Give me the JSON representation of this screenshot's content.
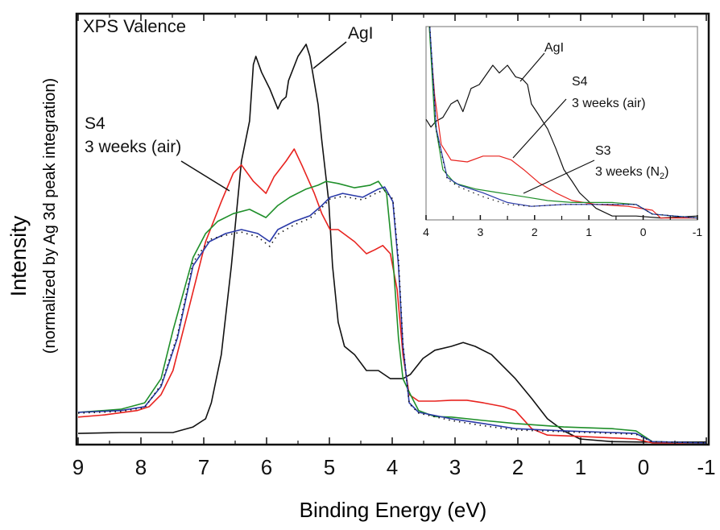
{
  "chart_data": [
    {
      "type": "line",
      "title": "XPS Valence",
      "xlabel": "Binding Energy (eV)",
      "ylabel": "Intensity",
      "ylabel_sub": "(normalized by Ag 3d peak integration)",
      "xlim": [
        9,
        -1
      ],
      "ylim": [
        0,
        100
      ],
      "x_reversed": true,
      "y_ticks_shown": false,
      "xticks": [
        "9",
        "8",
        "7",
        "6",
        "5",
        "4",
        "3",
        "2",
        "1",
        "0",
        "-1"
      ],
      "grid": false,
      "annotations": [
        {
          "label": "AgI"
        },
        {
          "label": "S4",
          "label2": "3 weeks (air)"
        }
      ],
      "series": [
        {
          "color": "#111111",
          "style": "solid",
          "x": [
            9.0,
            8.32,
            7.49,
            7.17,
            6.97,
            6.88,
            6.72,
            6.56,
            6.4,
            6.27,
            6.21,
            6.17,
            6.08,
            5.95,
            5.82,
            5.76,
            5.69,
            5.65,
            5.5,
            5.37,
            5.31,
            5.18,
            5.12,
            5.01,
            4.95,
            4.86,
            4.76,
            4.6,
            4.41,
            4.22,
            4.03,
            3.83,
            3.71,
            3.51,
            3.32,
            3.06,
            2.87,
            2.68,
            2.42,
            2.23,
            2.04,
            1.78,
            1.53,
            1.27,
            1.01,
            0.5,
            0.0,
            -1.0
          ],
          "y": [
            2.6,
            2.8,
            2.8,
            4.1,
            6.0,
            9.7,
            20.9,
            41.5,
            65.8,
            75.1,
            88.2,
            90.1,
            86.4,
            82.6,
            77.9,
            79.8,
            80.7,
            84.5,
            90.1,
            92.9,
            90.1,
            78.9,
            70.5,
            56.4,
            41.5,
            28.4,
            22.8,
            20.9,
            17.2,
            17.2,
            15.3,
            15.3,
            16.3,
            20.0,
            21.9,
            22.8,
            23.7,
            22.8,
            20.9,
            18.1,
            15.3,
            10.7,
            6.0,
            3.2,
            1.3,
            0.7,
            0.6,
            0.6
          ]
        },
        {
          "color": "#e8231f",
          "style": "solid",
          "x": [
            9.0,
            8.58,
            8.06,
            7.87,
            7.68,
            7.49,
            7.23,
            6.97,
            6.72,
            6.53,
            6.4,
            6.21,
            6.01,
            5.88,
            5.69,
            5.56,
            5.44,
            5.24,
            5.12,
            4.99,
            4.86,
            4.6,
            4.41,
            4.28,
            4.15,
            4.03,
            3.92,
            3.83,
            3.73,
            3.58,
            3.32,
            3.06,
            2.81,
            2.55,
            2.23,
            2.04,
            1.78,
            1.53,
            1.01,
            0.12,
            -0.14,
            -1.0
          ],
          "y": [
            6.4,
            6.9,
            7.9,
            8.8,
            11.6,
            17.2,
            32.1,
            47.1,
            56.4,
            63.0,
            64.9,
            61.1,
            58.3,
            62.2,
            65.8,
            68.6,
            64.9,
            58.3,
            53.6,
            49.9,
            49.9,
            47.1,
            44.3,
            45.2,
            46.2,
            44.3,
            35.9,
            20.9,
            11.6,
            10.1,
            10.1,
            10.3,
            10.3,
            9.7,
            8.8,
            7.9,
            3.7,
            2.2,
            1.9,
            1.3,
            0.4,
            0.4
          ]
        },
        {
          "color": "#1f8f2a",
          "style": "solid",
          "x": [
            9.0,
            8.32,
            7.94,
            7.68,
            7.49,
            7.17,
            6.97,
            6.78,
            6.53,
            6.27,
            6.01,
            5.82,
            5.63,
            5.37,
            5.18,
            5.05,
            4.86,
            4.6,
            4.35,
            4.22,
            4.09,
            3.99,
            3.9,
            3.83,
            3.71,
            3.58,
            3.32,
            3.06,
            2.55,
            2.04,
            1.27,
            0.5,
            0.12,
            -0.14,
            -1.0
          ],
          "y": [
            7.5,
            8.2,
            9.7,
            15.3,
            26.5,
            43.4,
            49.0,
            51.8,
            53.6,
            54.6,
            52.7,
            55.5,
            57.4,
            59.3,
            60.2,
            61.1,
            60.6,
            59.6,
            60.2,
            61.1,
            58.3,
            43.4,
            24.7,
            15.3,
            11.6,
            7.9,
            6.5,
            6.4,
            5.6,
            4.9,
            4.1,
            3.7,
            3.2,
            0.7,
            0.4
          ]
        },
        {
          "color": "#2a3aa8",
          "style": "solid",
          "x": [
            9.0,
            8.32,
            7.94,
            7.68,
            7.42,
            7.17,
            6.91,
            6.65,
            6.4,
            6.14,
            5.95,
            5.82,
            5.56,
            5.31,
            5.12,
            4.99,
            4.79,
            4.47,
            4.22,
            4.12,
            3.99,
            3.9,
            3.83,
            3.73,
            3.58,
            3.06,
            2.55,
            2.04,
            1.27,
            0.5,
            0.12,
            -0.14,
            -1.0
          ],
          "y": [
            7.5,
            7.9,
            8.8,
            13.5,
            24.7,
            41.5,
            47.1,
            49.0,
            49.9,
            49.0,
            47.1,
            49.9,
            51.8,
            53.1,
            55.5,
            57.4,
            58.3,
            57.4,
            59.3,
            59.8,
            56.4,
            41.5,
            22.8,
            9.7,
            7.5,
            6.0,
            4.9,
            3.7,
            3.2,
            2.8,
            2.6,
            0.7,
            0.4
          ]
        },
        {
          "color": "#111111",
          "style": "dotted",
          "x": [
            9.0,
            8.32,
            7.94,
            7.68,
            7.42,
            7.17,
            6.91,
            6.65,
            6.4,
            6.14,
            5.95,
            5.82,
            5.56,
            5.31,
            5.12,
            4.99,
            4.79,
            4.47,
            4.22,
            4.12,
            3.99,
            3.9,
            3.83,
            3.73,
            3.58,
            3.06,
            2.55,
            2.04,
            1.27,
            0.5,
            0.12,
            -0.14,
            -1.0
          ],
          "y": [
            7.3,
            7.7,
            8.6,
            13.9,
            25.3,
            42.3,
            47.6,
            48.6,
            49.3,
            48.2,
            46.0,
            48.8,
            51.0,
            52.5,
            55.0,
            57.0,
            57.6,
            56.8,
            58.6,
            59.0,
            57.0,
            43.0,
            23.5,
            9.5,
            7.3,
            5.6,
            4.4,
            3.4,
            3.0,
            2.6,
            2.4,
            0.7,
            0.4
          ]
        }
      ]
    },
    {
      "type": "line",
      "inset": true,
      "xlim": [
        4,
        -1
      ],
      "ylim": [
        0,
        100
      ],
      "x_reversed": true,
      "xticks": [
        "4",
        "3",
        "2",
        "1",
        "0",
        "-1"
      ],
      "annotations": [
        {
          "label": "AgI"
        },
        {
          "label": "S4",
          "label2": "3 weeks (air)"
        },
        {
          "label": "S3",
          "label2": "3 weeks (N",
          "label2_sub": "2",
          "label2_end": ")"
        }
      ],
      "series": [
        {
          "color": "#111111",
          "style": "solid",
          "x": [
            4.0,
            3.91,
            3.82,
            3.69,
            3.54,
            3.42,
            3.32,
            3.17,
            3.02,
            2.87,
            2.77,
            2.65,
            2.5,
            2.35,
            2.23,
            2.13,
            2.06,
            1.94,
            1.76,
            1.61,
            1.46,
            1.31,
            1.17,
            1.02,
            0.87,
            0.57,
            0.13,
            -0.32,
            -1.0
          ],
          "y": [
            52,
            48,
            51,
            53,
            60,
            62,
            56,
            68,
            70,
            76,
            80,
            76,
            80,
            74,
            73,
            70,
            60,
            55,
            47,
            37,
            26,
            20,
            14,
            10,
            6,
            2,
            2,
            1,
            2
          ]
        },
        {
          "color": "#e8231f",
          "style": "solid",
          "x": [
            3.94,
            3.84,
            3.72,
            3.54,
            3.24,
            2.95,
            2.65,
            2.43,
            2.2,
            1.91,
            1.61,
            1.31,
            0.87,
            0.28,
            -0.17,
            -0.32,
            -1.0
          ],
          "y": [
            100,
            64,
            39,
            31,
            30,
            33,
            33,
            31,
            26,
            19,
            14,
            10,
            8,
            7,
            5,
            1,
            1
          ]
        },
        {
          "color": "#1f8f2a",
          "style": "solid",
          "x": [
            3.94,
            3.84,
            3.69,
            3.47,
            3.09,
            2.65,
            2.2,
            1.76,
            1.31,
            0.57,
            0.13,
            -0.17,
            -1.0
          ],
          "y": [
            100,
            51,
            26,
            19,
            16,
            14,
            12,
            10,
            9,
            9,
            8,
            3,
            1
          ]
        },
        {
          "color": "#2a3aa8",
          "style": "solid",
          "x": [
            3.93,
            3.81,
            3.61,
            3.39,
            2.95,
            2.5,
            2.06,
            1.46,
            0.57,
            0.13,
            -0.17,
            -1.0
          ],
          "y": [
            100,
            47,
            22,
            18,
            14,
            9,
            7,
            8,
            8,
            8,
            3,
            1
          ]
        },
        {
          "color": "#111111",
          "style": "dotted",
          "x": [
            3.93,
            3.81,
            3.61,
            3.39,
            2.95,
            2.5,
            2.06,
            1.46,
            0.57,
            0.13,
            -0.17,
            -1.0
          ],
          "y": [
            100,
            46,
            21,
            17,
            12,
            8,
            7,
            8,
            8,
            8,
            3,
            1
          ]
        }
      ]
    }
  ]
}
